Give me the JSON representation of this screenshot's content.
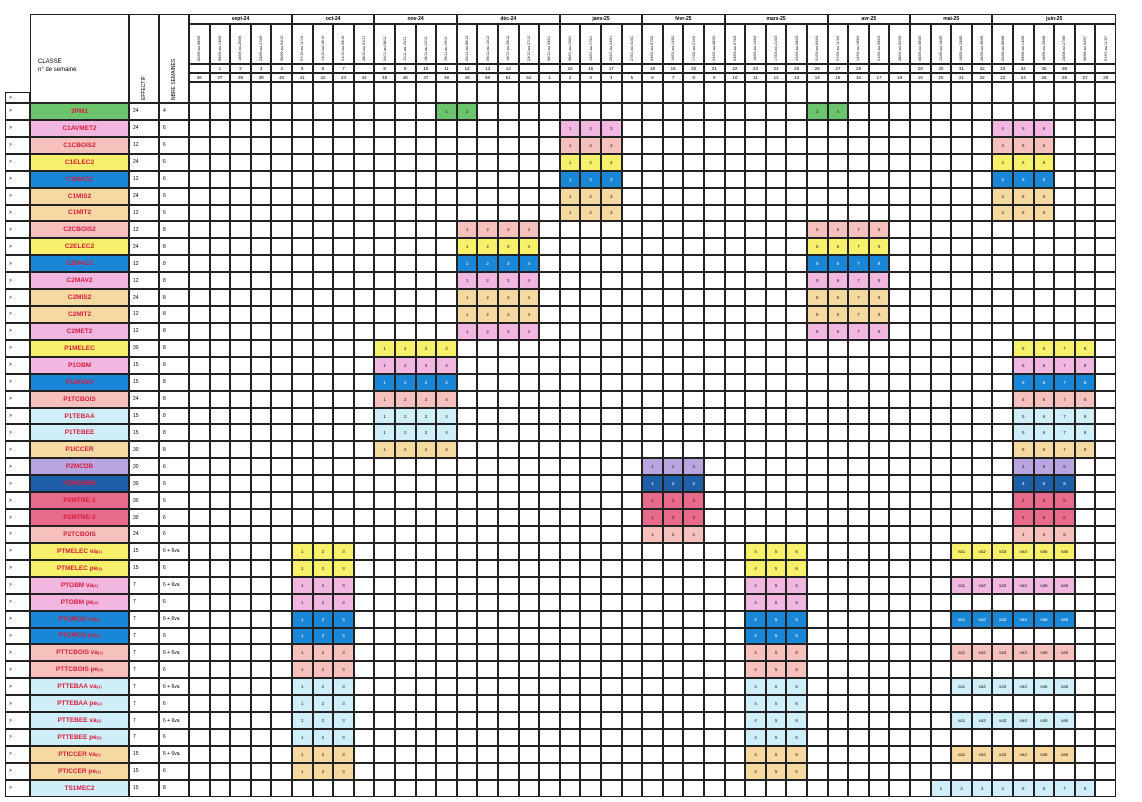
{
  "header": {
    "classe_label": "CLASSE",
    "semaine_label": "n° de semaine",
    "effectif_label": "EFFECTIF",
    "nbre_label": "NBRE SEMAINES",
    "row_marker": ">",
    "week_marker": ">"
  },
  "months": [
    "sept-24",
    "oct-24",
    "nov-24",
    "déc-24",
    "janv-25",
    "févr-25",
    "mars-25",
    "avr-25",
    "mai-25",
    "juin-25"
  ],
  "month_spans": [
    [
      1,
      5
    ],
    [
      6,
      9
    ],
    [
      10,
      13
    ],
    [
      14,
      18
    ],
    [
      19,
      22
    ],
    [
      23,
      26
    ],
    [
      27,
      31
    ],
    [
      32,
      35
    ],
    [
      36,
      39
    ],
    [
      40,
      45
    ]
  ],
  "week_ranges": [
    "02/09 au 06/09",
    "09/09 au 13/09",
    "16/09 au 20/09",
    "23/09 au 27/09",
    "30/09 au 04/10",
    "07/10 au 11/10",
    "14/10 au 18/10",
    "21/10 au 25/10",
    "28/10 au 01/11",
    "04/11 au 08/11",
    "11/11 au 15/11",
    "18/11 au 22/11",
    "25/11 au 29/11",
    "02/12 au 06/12",
    "09/12 au 13/12",
    "16/12 au 20/12",
    "23/12 au 27/12",
    "30/12 au 03/01",
    "06/01 au 10/01",
    "13/01 au 17/01",
    "20/01 au 24/01",
    "27/01 au 31/01",
    "03/02 au 07/02",
    "10/02 au 14/02",
    "17/02 au 21/02",
    "24/02 au 28/02",
    "03/03 au 07/03",
    "10/03 au 14/03",
    "17/03 au 21/03",
    "24/03 au 28/03",
    "31/03 au 04/04",
    "07/04 au 11/04",
    "14/04 au 18/04",
    "21/04 au 25/04",
    "28/04 au 02/05",
    "05/05 au 09/05",
    "12/05 au 16/05",
    "19/05 au 23/05",
    "26/05 au 30/05",
    "02/06 au 06/06",
    "09/06 au 13/06",
    "16/06 au 20/06",
    "23/06 au 27/06",
    "30/06 au 04/07",
    "07/07 au 11/07"
  ],
  "training_week_numbers": [
    "",
    "1",
    "2",
    "3",
    "4",
    "5",
    "6",
    "7",
    "",
    "8",
    "9",
    "10",
    "11",
    "12",
    "13",
    "14",
    "",
    "",
    "15",
    "16",
    "17",
    "",
    "18",
    "19",
    "20",
    "21",
    "22",
    "23",
    "24",
    "25",
    "26",
    "27",
    "28",
    "",
    "",
    "29",
    "30",
    "31",
    "32",
    "33",
    "34",
    "35",
    "36",
    "",
    ""
  ],
  "iso_week_numbers": [
    "36",
    "37",
    "38",
    "39",
    "40",
    "41",
    "42",
    "43",
    "44",
    "45",
    "46",
    "47",
    "48",
    "49",
    "50",
    "51",
    "52",
    "1",
    "2",
    "3",
    "4",
    "5",
    "6",
    "7",
    "8",
    "9",
    "10",
    "11",
    "12",
    "13",
    "14",
    "15",
    "16",
    "17",
    "18",
    "19",
    "20",
    "21",
    "22",
    "23",
    "24",
    "25",
    "26",
    "27",
    "28"
  ],
  "colors": {
    "green": "#6cc46c",
    "pink": "#f1b7e0",
    "salmon": "#f6c1bd",
    "yellow": "#f7f06a",
    "blue": "#1a86d6",
    "peach": "#f5d9a0",
    "cyan": "#cfeef8",
    "lilac": "#b9a6e0",
    "navy": "#1f5fa8",
    "rose": "#e86a8c",
    "mag": "#e48cc4",
    "label_red": "#d81b3c"
  },
  "rows": [
    {
      "label": "3PM1",
      "sup": "",
      "effectif": "24",
      "nbre": "4",
      "color": "green",
      "blocks": [
        [
          13,
          [
            "1",
            "2"
          ]
        ],
        [
          31,
          [
            "3",
            "4"
          ]
        ]
      ]
    },
    {
      "label": "C1AVMET2",
      "sup": "",
      "effectif": "24",
      "nbre": "6",
      "color": "pink",
      "blocks": [
        [
          19,
          [
            "1",
            "2",
            "3"
          ]
        ],
        [
          40,
          [
            "4",
            "5",
            "6"
          ]
        ]
      ]
    },
    {
      "label": "C1CBOIS2",
      "sup": "",
      "effectif": "12",
      "nbre": "6",
      "color": "salmon",
      "blocks": [
        [
          19,
          [
            "1",
            "2",
            "3"
          ]
        ],
        [
          40,
          [
            "4",
            "5",
            "6"
          ]
        ]
      ]
    },
    {
      "label": "C1ELEC2",
      "sup": "",
      "effectif": "24",
      "nbre": "6",
      "color": "yellow",
      "blocks": [
        [
          19,
          [
            "1",
            "2",
            "3"
          ]
        ],
        [
          40,
          [
            "4",
            "5",
            "6"
          ]
        ]
      ]
    },
    {
      "label": "C1MAC2",
      "sup": "",
      "effectif": "12",
      "nbre": "6",
      "color": "blue",
      "blocks": [
        [
          19,
          [
            "1",
            "2",
            "3"
          ]
        ],
        [
          40,
          [
            "4",
            "5",
            "6"
          ]
        ]
      ]
    },
    {
      "label": "C1MIS2",
      "sup": "",
      "effectif": "24",
      "nbre": "6",
      "color": "peach",
      "blocks": [
        [
          19,
          [
            "1",
            "2",
            "3"
          ]
        ],
        [
          40,
          [
            "4",
            "5",
            "6"
          ]
        ]
      ]
    },
    {
      "label": "C1MIT2",
      "sup": "",
      "effectif": "12",
      "nbre": "6",
      "color": "peach",
      "blocks": [
        [
          19,
          [
            "1",
            "2",
            "3"
          ]
        ],
        [
          40,
          [
            "4",
            "5",
            "6"
          ]
        ]
      ]
    },
    {
      "label": "C2CBOIS2",
      "sup": "",
      "effectif": "12",
      "nbre": "8",
      "color": "salmon",
      "blocks": [
        [
          14,
          [
            "1",
            "2",
            "3",
            "4"
          ]
        ],
        [
          31,
          [
            "5",
            "6",
            "7",
            "8"
          ]
        ]
      ]
    },
    {
      "label": "C2ELEC2",
      "sup": "",
      "effectif": "24",
      "nbre": "8",
      "color": "yellow",
      "blocks": [
        [
          14,
          [
            "1",
            "2",
            "3",
            "4"
          ]
        ],
        [
          31,
          [
            "5",
            "6",
            "7",
            "8"
          ]
        ]
      ]
    },
    {
      "label": "C2MAC2",
      "sup": "",
      "effectif": "12",
      "nbre": "8",
      "color": "blue",
      "blocks": [
        [
          14,
          [
            "1",
            "2",
            "3",
            "4"
          ]
        ],
        [
          31,
          [
            "5",
            "6",
            "7",
            "8"
          ]
        ]
      ]
    },
    {
      "label": "C2MAV2",
      "sup": "",
      "effectif": "12",
      "nbre": "8",
      "color": "pink",
      "blocks": [
        [
          14,
          [
            "1",
            "2",
            "3",
            "4"
          ]
        ],
        [
          31,
          [
            "5",
            "6",
            "7",
            "8"
          ]
        ]
      ]
    },
    {
      "label": "C2MIS2",
      "sup": "",
      "effectif": "24",
      "nbre": "8",
      "color": "peach",
      "blocks": [
        [
          14,
          [
            "1",
            "2",
            "3",
            "4"
          ]
        ],
        [
          31,
          [
            "5",
            "6",
            "7",
            "8"
          ]
        ]
      ]
    },
    {
      "label": "C2MIT2",
      "sup": "",
      "effectif": "12",
      "nbre": "8",
      "color": "peach",
      "blocks": [
        [
          14,
          [
            "1",
            "2",
            "3",
            "4"
          ]
        ],
        [
          31,
          [
            "5",
            "6",
            "7",
            "8"
          ]
        ]
      ]
    },
    {
      "label": "C2MET2",
      "sup": "",
      "effectif": "12",
      "nbre": "8",
      "color": "pink",
      "blocks": [
        [
          14,
          [
            "1",
            "2",
            "3",
            "4"
          ]
        ],
        [
          31,
          [
            "5",
            "6",
            "7",
            "8"
          ]
        ]
      ]
    },
    {
      "label": "P1MELEC",
      "sup": "",
      "effectif": "30",
      "nbre": "8",
      "color": "yellow",
      "blocks": [
        [
          10,
          [
            "1",
            "2",
            "3",
            "4"
          ]
        ],
        [
          41,
          [
            "5",
            "6",
            "7",
            "8"
          ]
        ]
      ]
    },
    {
      "label": "P1OBM",
      "sup": "",
      "effectif": "15",
      "nbre": "8",
      "color": "pink",
      "blocks": [
        [
          10,
          [
            "1",
            "2",
            "3",
            "4"
          ]
        ],
        [
          41,
          [
            "5",
            "6",
            "7",
            "8"
          ]
        ]
      ]
    },
    {
      "label": "P1ORGO",
      "sup": "",
      "effectif": "15",
      "nbre": "8",
      "color": "blue",
      "blocks": [
        [
          10,
          [
            "1",
            "2",
            "3",
            "4"
          ]
        ],
        [
          41,
          [
            "5",
            "6",
            "7",
            "8"
          ]
        ]
      ]
    },
    {
      "label": "P1TCBOIS",
      "sup": "",
      "effectif": "24",
      "nbre": "8",
      "color": "salmon",
      "blocks": [
        [
          10,
          [
            "1",
            "2",
            "3",
            "4"
          ]
        ],
        [
          41,
          [
            "5",
            "6",
            "7",
            "8"
          ]
        ]
      ]
    },
    {
      "label": "P1TEBAA",
      "sup": "",
      "effectif": "15",
      "nbre": "8",
      "color": "cyan",
      "blocks": [
        [
          10,
          [
            "1",
            "2",
            "3",
            "4"
          ]
        ],
        [
          41,
          [
            "5",
            "6",
            "7",
            "8"
          ]
        ]
      ]
    },
    {
      "label": "P1TEBEE",
      "sup": "",
      "effectif": "15",
      "nbre": "8",
      "color": "cyan",
      "blocks": [
        [
          10,
          [
            "1",
            "2",
            "3",
            "4"
          ]
        ],
        [
          41,
          [
            "5",
            "6",
            "7",
            "8"
          ]
        ]
      ]
    },
    {
      "label": "P1ICCER",
      "sup": "",
      "effectif": "30",
      "nbre": "8",
      "color": "peach",
      "blocks": [
        [
          10,
          [
            "1",
            "2",
            "3",
            "4"
          ]
        ],
        [
          41,
          [
            "5",
            "6",
            "7",
            "8"
          ]
        ]
      ]
    },
    {
      "label": "P2MCDB",
      "sup": "",
      "effectif": "30",
      "nbre": "6",
      "color": "lilac",
      "blocks": [
        [
          23,
          [
            "1",
            "2",
            "3"
          ]
        ],
        [
          41,
          [
            "4",
            "5",
            "6"
          ]
        ]
      ]
    },
    {
      "label": "P2MEMBB",
      "sup": "",
      "effectif": "30",
      "nbre": "6",
      "color": "navy",
      "blocks": [
        [
          23,
          [
            "1",
            "2",
            "3"
          ]
        ],
        [
          41,
          [
            "4",
            "5",
            "6"
          ]
        ]
      ]
    },
    {
      "label": "P2MTNE-1",
      "sup": "",
      "effectif": "30",
      "nbre": "6",
      "color": "rose",
      "blocks": [
        [
          23,
          [
            "1",
            "2",
            "3"
          ]
        ],
        [
          41,
          [
            "4",
            "5",
            "6"
          ]
        ]
      ]
    },
    {
      "label": "P2MTNE-2",
      "sup": "",
      "effectif": "30",
      "nbre": "6",
      "color": "rose",
      "blocks": [
        [
          23,
          [
            "1",
            "2",
            "3"
          ]
        ],
        [
          41,
          [
            "4",
            "5",
            "6"
          ]
        ]
      ]
    },
    {
      "label": "P2TCBOIS",
      "sup": "",
      "effectif": "24",
      "nbre": "6",
      "color": "salmon",
      "blocks": [
        [
          23,
          [
            "1",
            "2",
            "3"
          ]
        ],
        [
          41,
          [
            "4",
            "5",
            "6"
          ]
        ]
      ]
    },
    {
      "label": "PTMELEC va",
      "sup": "(1)",
      "effectif": "15",
      "nbre": "6 + 6va",
      "color": "yellow",
      "blocks": [
        [
          6,
          [
            "1",
            "2",
            "3"
          ]
        ],
        [
          28,
          [
            "4",
            "5",
            "6"
          ]
        ],
        [
          38,
          [
            "va1",
            "va2",
            "va3",
            "va4",
            "va5",
            "va6"
          ]
        ]
      ]
    },
    {
      "label": "PTMELEC pe",
      "sup": "(2)",
      "effectif": "15",
      "nbre": "6",
      "color": "yellow",
      "blocks": [
        [
          6,
          [
            "1",
            "2",
            "3"
          ]
        ],
        [
          28,
          [
            "4",
            "5",
            "6"
          ]
        ]
      ]
    },
    {
      "label": "PTOBM va",
      "sup": "(1)",
      "effectif": "7",
      "nbre": "6 + 6va",
      "color": "pink",
      "blocks": [
        [
          6,
          [
            "1",
            "2",
            "3"
          ]
        ],
        [
          28,
          [
            "4",
            "5",
            "6"
          ]
        ],
        [
          38,
          [
            "va1",
            "va2",
            "va3",
            "va4",
            "va5",
            "va6"
          ]
        ]
      ]
    },
    {
      "label": "PTOBM pe",
      "sup": "(2)",
      "effectif": "7",
      "nbre": "6",
      "color": "pink",
      "blocks": [
        [
          6,
          [
            "1",
            "2",
            "3"
          ]
        ],
        [
          28,
          [
            "4",
            "5",
            "6"
          ]
        ]
      ]
    },
    {
      "label": "PTORGO va",
      "sup": "(1)",
      "effectif": "7",
      "nbre": "6 + 6va",
      "color": "blue",
      "blocks": [
        [
          6,
          [
            "1",
            "2",
            "3"
          ]
        ],
        [
          28,
          [
            "4",
            "5",
            "6"
          ]
        ],
        [
          38,
          [
            "va1",
            "va2",
            "va3",
            "va4",
            "va5",
            "va6"
          ]
        ]
      ]
    },
    {
      "label": "PTORGO pe",
      "sup": "(2)",
      "effectif": "7",
      "nbre": "6",
      "color": "blue",
      "blocks": [
        [
          6,
          [
            "1",
            "2",
            "3"
          ]
        ],
        [
          28,
          [
            "4",
            "5",
            "6"
          ]
        ]
      ]
    },
    {
      "label": "PTTCBOIS va",
      "sup": "(1)",
      "effectif": "7",
      "nbre": "6 + 6va",
      "color": "salmon",
      "blocks": [
        [
          6,
          [
            "1",
            "2",
            "3"
          ]
        ],
        [
          28,
          [
            "4",
            "5",
            "6"
          ]
        ],
        [
          38,
          [
            "va1",
            "va2",
            "va3",
            "va4",
            "va5",
            "va6"
          ]
        ]
      ]
    },
    {
      "label": "PTTCBOIS pe",
      "sup": "(2)",
      "effectif": "7",
      "nbre": "6",
      "color": "salmon",
      "blocks": [
        [
          6,
          [
            "1",
            "2",
            "3"
          ]
        ],
        [
          28,
          [
            "4",
            "5",
            "6"
          ]
        ]
      ]
    },
    {
      "label": "PTTEBAA va",
      "sup": "(1)",
      "effectif": "7",
      "nbre": "6 + 6va",
      "color": "cyan",
      "blocks": [
        [
          6,
          [
            "1",
            "2",
            "3"
          ]
        ],
        [
          28,
          [
            "4",
            "5",
            "6"
          ]
        ],
        [
          38,
          [
            "va1",
            "va2",
            "va3",
            "va4",
            "va5",
            "va6"
          ]
        ]
      ]
    },
    {
      "label": "PTTEBAA pe",
      "sup": "(2)",
      "effectif": "7",
      "nbre": "6",
      "color": "cyan",
      "blocks": [
        [
          6,
          [
            "1",
            "2",
            "3"
          ]
        ],
        [
          28,
          [
            "4",
            "5",
            "6"
          ]
        ]
      ]
    },
    {
      "label": "PTTEBEE va",
      "sup": "(1)",
      "effectif": "7",
      "nbre": "6 + 6va",
      "color": "cyan",
      "blocks": [
        [
          6,
          [
            "1",
            "2",
            "3"
          ]
        ],
        [
          28,
          [
            "4",
            "5",
            "6"
          ]
        ],
        [
          38,
          [
            "va1",
            "va2",
            "va3",
            "va4",
            "va5",
            "va6"
          ]
        ]
      ]
    },
    {
      "label": "PTTEBEE pe",
      "sup": "(2)",
      "effectif": "7",
      "nbre": "6",
      "color": "cyan",
      "blocks": [
        [
          6,
          [
            "1",
            "2",
            "3"
          ]
        ],
        [
          28,
          [
            "4",
            "5",
            "6"
          ]
        ]
      ]
    },
    {
      "label": "PTICCER va",
      "sup": "(1)",
      "effectif": "15",
      "nbre": "6 + 6va",
      "color": "peach",
      "blocks": [
        [
          6,
          [
            "1",
            "2",
            "3"
          ]
        ],
        [
          28,
          [
            "4",
            "5",
            "6"
          ]
        ],
        [
          38,
          [
            "va1",
            "va2",
            "va3",
            "va4",
            "va5",
            "va6"
          ]
        ]
      ]
    },
    {
      "label": "PTICCER pe",
      "sup": "(2)",
      "effectif": "15",
      "nbre": "6",
      "color": "peach",
      "blocks": [
        [
          6,
          [
            "1",
            "2",
            "3"
          ]
        ],
        [
          28,
          [
            "4",
            "5",
            "6"
          ]
        ]
      ]
    },
    {
      "label": "TS1MEC2",
      "sup": "",
      "effectif": "15",
      "nbre": "8",
      "color": "cyan",
      "blocks": [
        [
          37,
          [
            "1",
            "2",
            "3",
            "4",
            "5",
            "6",
            "7",
            "8"
          ]
        ]
      ]
    }
  ]
}
